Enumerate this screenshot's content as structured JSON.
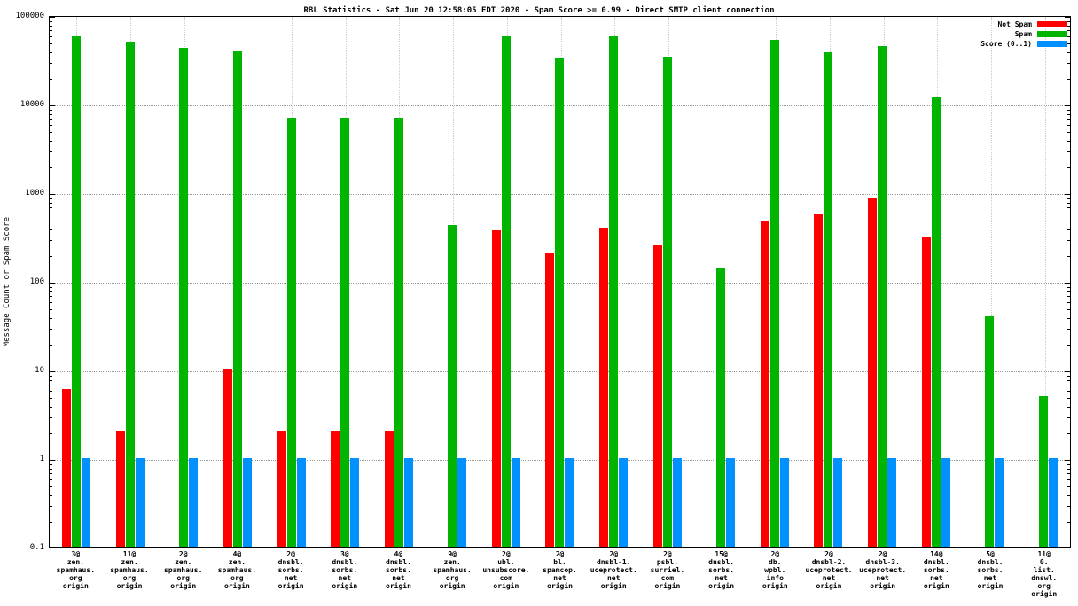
{
  "chart_data": {
    "type": "bar",
    "title": "RBL Statistics - Sat Jun 20 12:58:05 EDT 2020 - Spam Score >= 0.99 - Direct SMTP client connection",
    "xlabel": "",
    "ylabel": "Message Count or Spam Score",
    "y_scale": "log10",
    "ylim": [
      0.1,
      100000
    ],
    "yticks": [
      100000,
      10000,
      1000,
      100,
      10,
      1,
      0.1
    ],
    "grid": true,
    "legend_position": "top-right",
    "background": "#ffffff",
    "categories": [
      [
        "3@",
        "zen.",
        "spamhaus.",
        "org",
        "origin"
      ],
      [
        "11@",
        "zen.",
        "spamhaus.",
        "org",
        "origin"
      ],
      [
        "2@",
        "zen.",
        "spamhaus.",
        "org",
        "origin"
      ],
      [
        "4@",
        "zen.",
        "spamhaus.",
        "org",
        "origin"
      ],
      [
        "2@",
        "dnsbl.",
        "sorbs.",
        "net",
        "origin"
      ],
      [
        "3@",
        "dnsbl.",
        "sorbs.",
        "net",
        "origin"
      ],
      [
        "4@",
        "dnsbl.",
        "sorbs.",
        "net",
        "origin"
      ],
      [
        "9@",
        "zen.",
        "spamhaus.",
        "org",
        "origin"
      ],
      [
        "2@",
        "ubl.",
        "unsubscore.",
        "com",
        "origin"
      ],
      [
        "2@",
        "bl.",
        "spamcop.",
        "net",
        "origin"
      ],
      [
        "2@",
        "dnsbl-1.",
        "uceprotect.",
        "net",
        "origin"
      ],
      [
        "2@",
        "psbl.",
        "surriel.",
        "com",
        "origin"
      ],
      [
        "15@",
        "dnsbl.",
        "sorbs.",
        "net",
        "origin"
      ],
      [
        "2@",
        "db.",
        "wpbl.",
        "info",
        "origin"
      ],
      [
        "2@",
        "dnsbl-2.",
        "uceprotect.",
        "net",
        "origin"
      ],
      [
        "2@",
        "dnsbl-3.",
        "uceprotect.",
        "net",
        "origin"
      ],
      [
        "14@",
        "dnsbl.",
        "sorbs.",
        "net",
        "origin"
      ],
      [
        "5@",
        "dnsbl.",
        "sorbs.",
        "net",
        "origin"
      ],
      [
        "11@",
        "0.",
        "list.",
        "dnswl.",
        "org",
        "origin"
      ]
    ],
    "series": [
      {
        "name": "Not Spam",
        "color": "#ff0000",
        "values": [
          6,
          2,
          0,
          10,
          2,
          2,
          2,
          0,
          370,
          210,
          400,
          250,
          0,
          480,
          560,
          850,
          310,
          0,
          0
        ]
      },
      {
        "name": "Spam",
        "color": "#00b400",
        "values": [
          58000,
          50000,
          43000,
          39000,
          7000,
          7000,
          7000,
          430,
          58000,
          33000,
          58000,
          34000,
          140,
          52000,
          38000,
          45000,
          12000,
          40,
          5
        ]
      },
      {
        "name": "Score (0..1)",
        "color": "#0090ff",
        "values": [
          1,
          1,
          1,
          1,
          1,
          1,
          1,
          1,
          1,
          1,
          1,
          1,
          1,
          1,
          1,
          1,
          1,
          1,
          1
        ]
      }
    ]
  }
}
